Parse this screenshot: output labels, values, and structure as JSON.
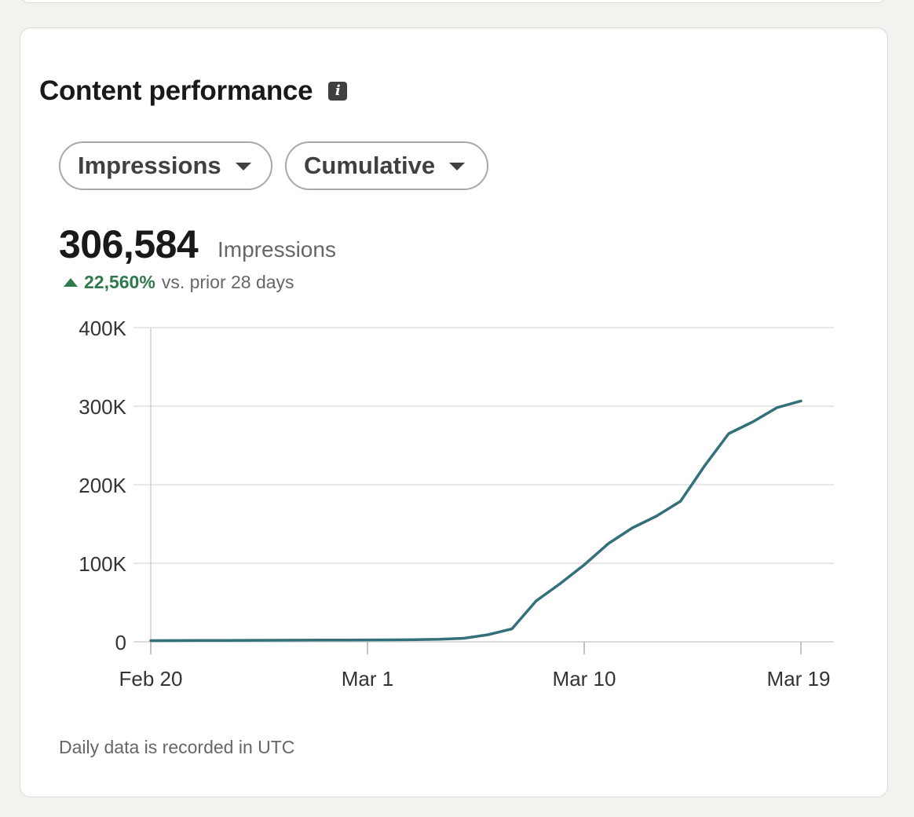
{
  "header": {
    "title": "Content performance",
    "info_icon": "info-icon"
  },
  "filters": {
    "metric": "Impressions",
    "mode": "Cumulative"
  },
  "summary": {
    "value": "306,584",
    "unit": "Impressions",
    "delta": "22,560%",
    "delta_label": "vs. prior 28 days",
    "delta_direction": "up",
    "delta_color": "#2f7a4a"
  },
  "footnote": "Daily data is recorded in UTC",
  "colors": {
    "line": "#33707a",
    "grid": "#e0e0e0",
    "axis_text": "#333333"
  },
  "chart_data": {
    "type": "line",
    "title": "",
    "xlabel": "",
    "ylabel": "",
    "x_start_day": 0,
    "x_end_day": 27,
    "xlim": [
      0,
      28
    ],
    "ylim": [
      0,
      400000
    ],
    "yticks": [
      0,
      100000,
      200000,
      300000,
      400000
    ],
    "ytick_labels": [
      "0",
      "100K",
      "200K",
      "300K",
      "400K"
    ],
    "xticks": [
      0,
      9,
      18,
      27
    ],
    "xtick_labels": [
      "Feb 20",
      "Mar 1",
      "Mar 10",
      "Mar 19"
    ],
    "series": [
      {
        "name": "Impressions",
        "x": [
          0,
          1,
          2,
          3,
          4,
          5,
          6,
          7,
          8,
          9,
          10,
          11,
          12,
          13,
          14,
          15,
          16,
          17,
          18,
          19,
          20,
          21,
          22,
          23,
          24,
          25,
          26,
          27
        ],
        "values": [
          1500,
          1600,
          1700,
          1800,
          1900,
          2000,
          2100,
          2200,
          2300,
          2400,
          2500,
          2700,
          3200,
          4500,
          9000,
          16500,
          52000,
          74000,
          98000,
          125000,
          145000,
          160000,
          179000,
          224000,
          265000,
          280000,
          298000,
          306584
        ]
      }
    ]
  }
}
